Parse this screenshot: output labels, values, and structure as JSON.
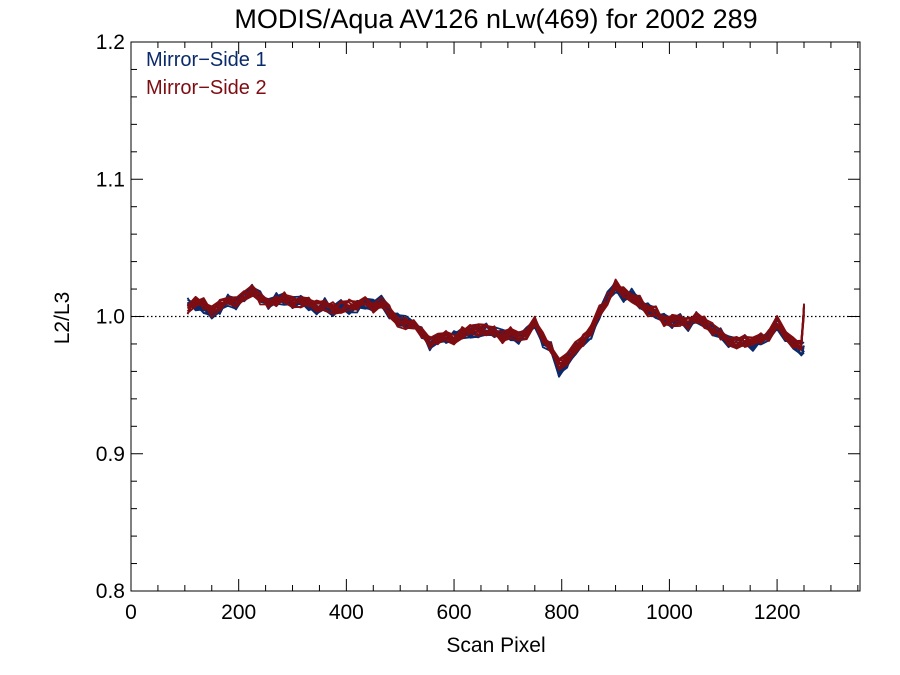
{
  "chart_data": {
    "type": "line",
    "title": "MODIS/Aqua AV126 nLw(469) for 2002 289",
    "xlabel": "Scan Pixel",
    "ylabel": "L2/L3",
    "xlim": [
      0,
      1354
    ],
    "ylim": [
      0.8,
      1.2
    ],
    "xticks": [
      "0",
      "200",
      "400",
      "600",
      "800",
      "1000",
      "1200"
    ],
    "yticks": [
      "0.8",
      "0.9",
      "1.0",
      "1.1",
      "1.2"
    ],
    "reference_line": 1.0,
    "grid": false,
    "legend_position": "top-left",
    "series": [
      {
        "name": "Mirror−Side 1",
        "color": "#0b2a6b",
        "traces": 10,
        "x": [
          105,
          120,
          135,
          150,
          165,
          180,
          195,
          210,
          225,
          240,
          255,
          270,
          285,
          300,
          315,
          330,
          345,
          360,
          375,
          390,
          405,
          420,
          435,
          450,
          465,
          480,
          495,
          510,
          525,
          540,
          555,
          570,
          585,
          600,
          615,
          630,
          645,
          660,
          675,
          690,
          705,
          720,
          735,
          750,
          765,
          780,
          795,
          810,
          825,
          840,
          855,
          870,
          885,
          900,
          915,
          930,
          945,
          960,
          975,
          990,
          1005,
          1020,
          1035,
          1050,
          1065,
          1080,
          1095,
          1110,
          1125,
          1140,
          1155,
          1170,
          1185,
          1200,
          1215,
          1230,
          1245,
          1250
        ],
        "y": [
          1.01,
          1.008,
          1.006,
          1.003,
          1.006,
          1.012,
          1.009,
          1.014,
          1.02,
          1.015,
          1.009,
          1.013,
          1.013,
          1.01,
          1.011,
          1.009,
          1.006,
          1.009,
          1.004,
          1.008,
          1.006,
          1.007,
          1.009,
          1.008,
          1.011,
          1.003,
          0.998,
          0.996,
          0.993,
          0.988,
          0.979,
          0.983,
          0.985,
          0.985,
          0.987,
          0.989,
          0.989,
          0.991,
          0.988,
          0.986,
          0.987,
          0.984,
          0.988,
          0.996,
          0.982,
          0.977,
          0.96,
          0.967,
          0.976,
          0.982,
          0.988,
          1.002,
          1.015,
          1.022,
          1.015,
          1.016,
          1.01,
          1.006,
          1.002,
          0.998,
          0.996,
          0.998,
          0.993,
          1.0,
          0.995,
          0.99,
          0.988,
          0.982,
          0.98,
          0.983,
          0.979,
          0.984,
          0.987,
          0.995,
          0.986,
          0.98,
          0.976,
          0.978
        ]
      },
      {
        "name": "Mirror−Side 2",
        "color": "#7e0d12",
        "traces": 10,
        "x": [
          105,
          120,
          135,
          150,
          165,
          180,
          195,
          210,
          225,
          240,
          255,
          270,
          285,
          300,
          315,
          330,
          345,
          360,
          375,
          390,
          405,
          420,
          435,
          450,
          465,
          480,
          495,
          510,
          525,
          540,
          555,
          570,
          585,
          600,
          615,
          630,
          645,
          660,
          675,
          690,
          705,
          720,
          735,
          750,
          765,
          780,
          795,
          810,
          825,
          840,
          855,
          870,
          885,
          900,
          915,
          930,
          945,
          960,
          975,
          990,
          1005,
          1020,
          1035,
          1050,
          1065,
          1080,
          1095,
          1110,
          1125,
          1140,
          1155,
          1170,
          1185,
          1200,
          1215,
          1230,
          1245,
          1250
        ],
        "y": [
          1.006,
          1.01,
          1.009,
          1.004,
          1.008,
          1.013,
          1.011,
          1.016,
          1.019,
          1.013,
          1.01,
          1.012,
          1.014,
          1.011,
          1.01,
          1.01,
          1.008,
          1.008,
          1.006,
          1.007,
          1.008,
          1.008,
          1.01,
          1.007,
          1.01,
          1.004,
          0.997,
          0.995,
          0.994,
          0.989,
          0.981,
          0.984,
          0.986,
          0.984,
          0.988,
          0.99,
          0.99,
          0.99,
          0.989,
          0.985,
          0.988,
          0.985,
          0.987,
          0.997,
          0.985,
          0.978,
          0.965,
          0.969,
          0.977,
          0.983,
          0.99,
          1.004,
          1.013,
          1.023,
          1.017,
          1.014,
          1.011,
          1.004,
          1.003,
          0.997,
          0.997,
          0.997,
          0.995,
          0.999,
          0.996,
          0.991,
          0.986,
          0.983,
          0.981,
          0.982,
          0.981,
          0.985,
          0.986,
          0.996,
          0.987,
          0.981,
          0.979,
          1.005
        ]
      }
    ]
  }
}
